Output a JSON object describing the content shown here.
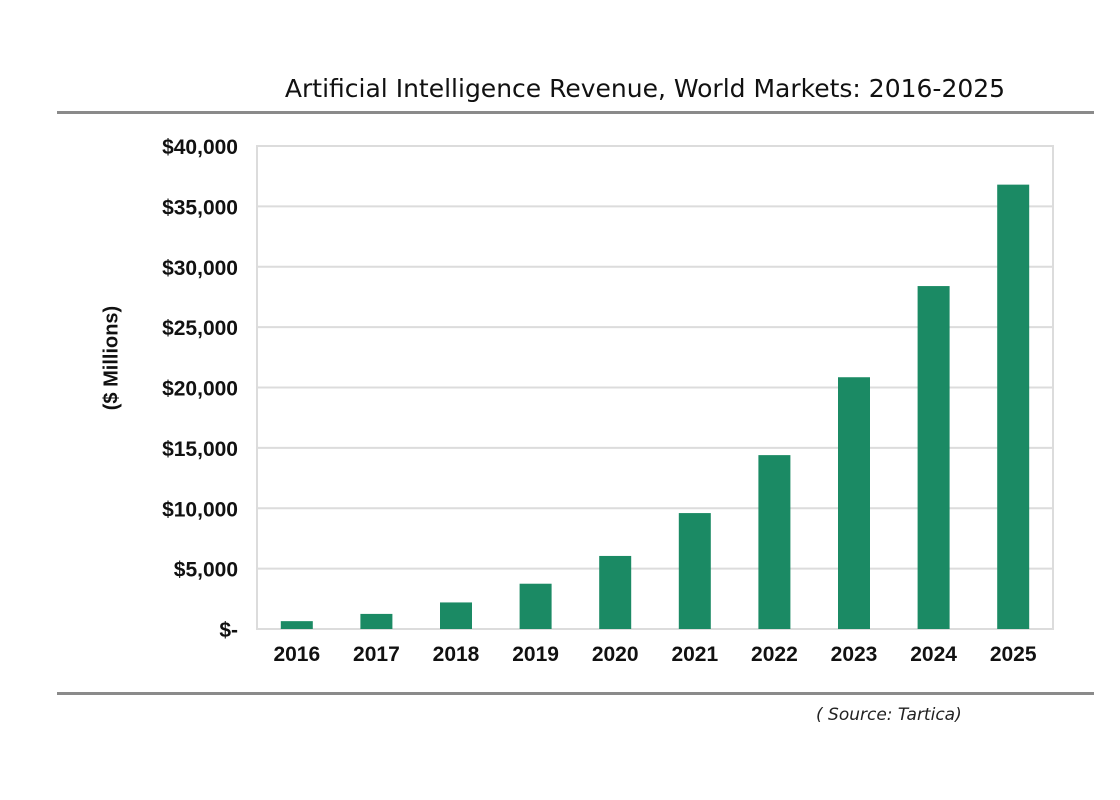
{
  "chart_data": {
    "type": "bar",
    "title": "Artificial Intelligence Revenue, World Markets: 2016-2025",
    "ylabel": "($ Millions)",
    "xlabel": "",
    "source": "( Source: Tartica)",
    "categories": [
      "2016",
      "2017",
      "2018",
      "2019",
      "2020",
      "2021",
      "2022",
      "2023",
      "2024",
      "2025"
    ],
    "values": [
      650,
      1250,
      2200,
      3750,
      6050,
      9600,
      14400,
      20850,
      28400,
      36800
    ],
    "ylim": [
      0,
      40000
    ],
    "yticks": [
      0,
      5000,
      10000,
      15000,
      20000,
      25000,
      30000,
      35000,
      40000
    ],
    "ytick_labels": [
      "$-",
      "$5,000",
      "$10,000",
      "$15,000",
      "$20,000",
      "$25,000",
      "$30,000",
      "$35,000",
      "$40,000"
    ],
    "grid": true,
    "bar_color": "#1b8a64",
    "grid_color": "#dcdcdc"
  }
}
